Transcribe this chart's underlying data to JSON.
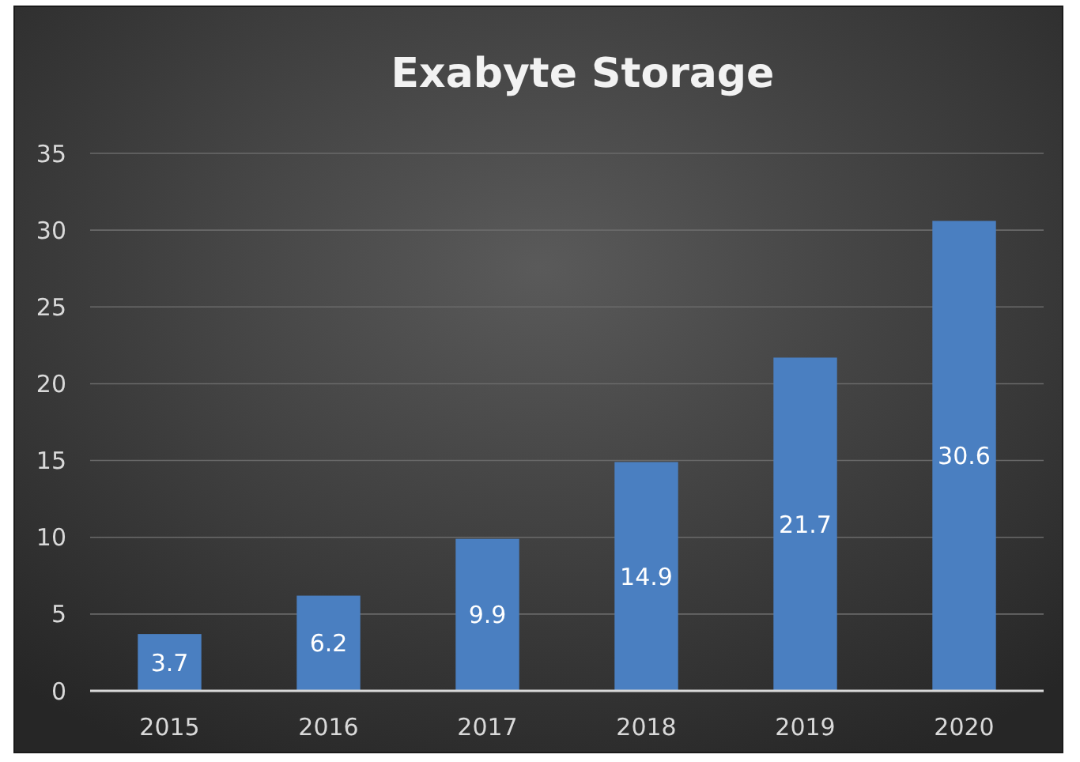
{
  "chart_data": {
    "type": "bar",
    "title": "Exabyte Storage",
    "categories": [
      "2015",
      "2016",
      "2017",
      "2018",
      "2019",
      "2020"
    ],
    "values": [
      3.7,
      6.2,
      9.9,
      14.9,
      21.7,
      30.6
    ],
    "color": "#4a7fc1",
    "ylim": [
      0,
      35
    ],
    "yticks": [
      0,
      5,
      10,
      15,
      20,
      25,
      30,
      35
    ],
    "grid": "y",
    "data_labels": true
  }
}
